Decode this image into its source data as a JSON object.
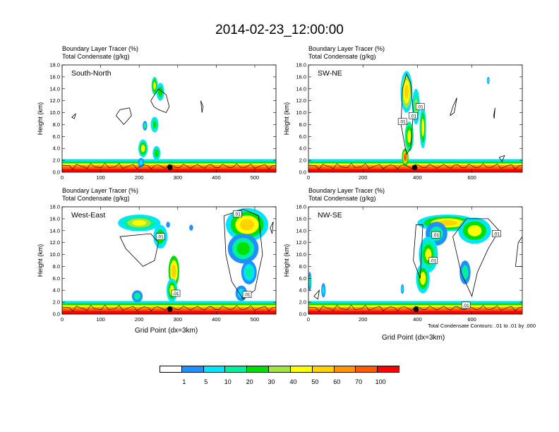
{
  "figure": {
    "title": "2014-02-23_12:00:00",
    "xlabel": "Grid Point (dx=3km)",
    "contour_note": "Total Condensate Contours: .01 to .01 by .000"
  },
  "colorbar": {
    "colors": [
      "#ffffff",
      "#1e90ff",
      "#00e5ff",
      "#00f0a0",
      "#00e000",
      "#a0e63c",
      "#ffff00",
      "#ffd200",
      "#ff9600",
      "#ff5a00",
      "#ff0000"
    ],
    "labels": [
      "1",
      "5",
      "10",
      "20",
      "30",
      "40",
      "50",
      "60",
      "70",
      "100"
    ]
  },
  "chart_data": [
    {
      "type": "heatmap",
      "id": "south-north",
      "header_line1": "Boundary Layer Tracer   (%)",
      "header_line2": "Total Condensate   (g/kg)",
      "panel_label": "South-North",
      "ylabel": "Height (km)",
      "xlim": [
        0,
        555
      ],
      "ylim": [
        0,
        18
      ],
      "xticks": [
        "0",
        "100",
        "200",
        "300",
        "400",
        "500"
      ],
      "yticks": [
        "0.0",
        "2.0",
        "4.0",
        "6.0",
        "8.0",
        "10.0",
        "12.0",
        "14.0",
        "16.0",
        "18.0"
      ],
      "contour_labels": [],
      "marker_x": 280
    },
    {
      "type": "heatmap",
      "id": "sw-ne",
      "header_line1": "Boundary Layer Tracer   (%)",
      "header_line2": "Total Condensate   (g/kg)",
      "panel_label": "SW-NE",
      "ylabel": "Height (km)",
      "xlim": [
        0,
        785
      ],
      "ylim": [
        0,
        18
      ],
      "xticks": [
        "0",
        "200",
        "400",
        "600"
      ],
      "yticks": [
        "0.0",
        "2.0",
        "4.0",
        "6.0",
        "8.0",
        "10.0",
        "12.0",
        "14.0",
        "16.0",
        "18.0"
      ],
      "contour_labels": [
        ".01",
        ".01",
        ".01"
      ],
      "marker_x": 390
    },
    {
      "type": "heatmap",
      "id": "west-east",
      "header_line1": "Boundary Layer Tracer   (%)",
      "header_line2": "Total Condensate   (g/kg)",
      "panel_label": "West-East",
      "ylabel": "Height (km)",
      "xlim": [
        0,
        555
      ],
      "ylim": [
        0,
        18
      ],
      "xticks": [
        "0",
        "100",
        "200",
        "300",
        "400",
        "500"
      ],
      "yticks": [
        "0.0",
        "2.0",
        "4.0",
        "6.0",
        "8.0",
        "10.0",
        "12.0",
        "14.0",
        "16.0",
        "18.0"
      ],
      "contour_labels": [
        ".01",
        ".01",
        ".01",
        ".01"
      ],
      "marker_x": 280
    },
    {
      "type": "heatmap",
      "id": "nw-se",
      "header_line1": "Boundary Layer Tracer   (%)",
      "header_line2": "Total Condensate   (g/kg)",
      "panel_label": "NW-SE",
      "ylabel": "Height (km)",
      "xlim": [
        0,
        785
      ],
      "ylim": [
        0,
        18
      ],
      "xticks": [
        "0",
        "200",
        "400",
        "600"
      ],
      "yticks": [
        "0.0",
        "2.0",
        "4.0",
        "6.0",
        "8.0",
        "10.0",
        "12.0",
        "14.0",
        "16.0",
        "18.0"
      ],
      "contour_labels": [
        ".01",
        ".01",
        ".01",
        ".01"
      ],
      "marker_x": 395
    }
  ]
}
